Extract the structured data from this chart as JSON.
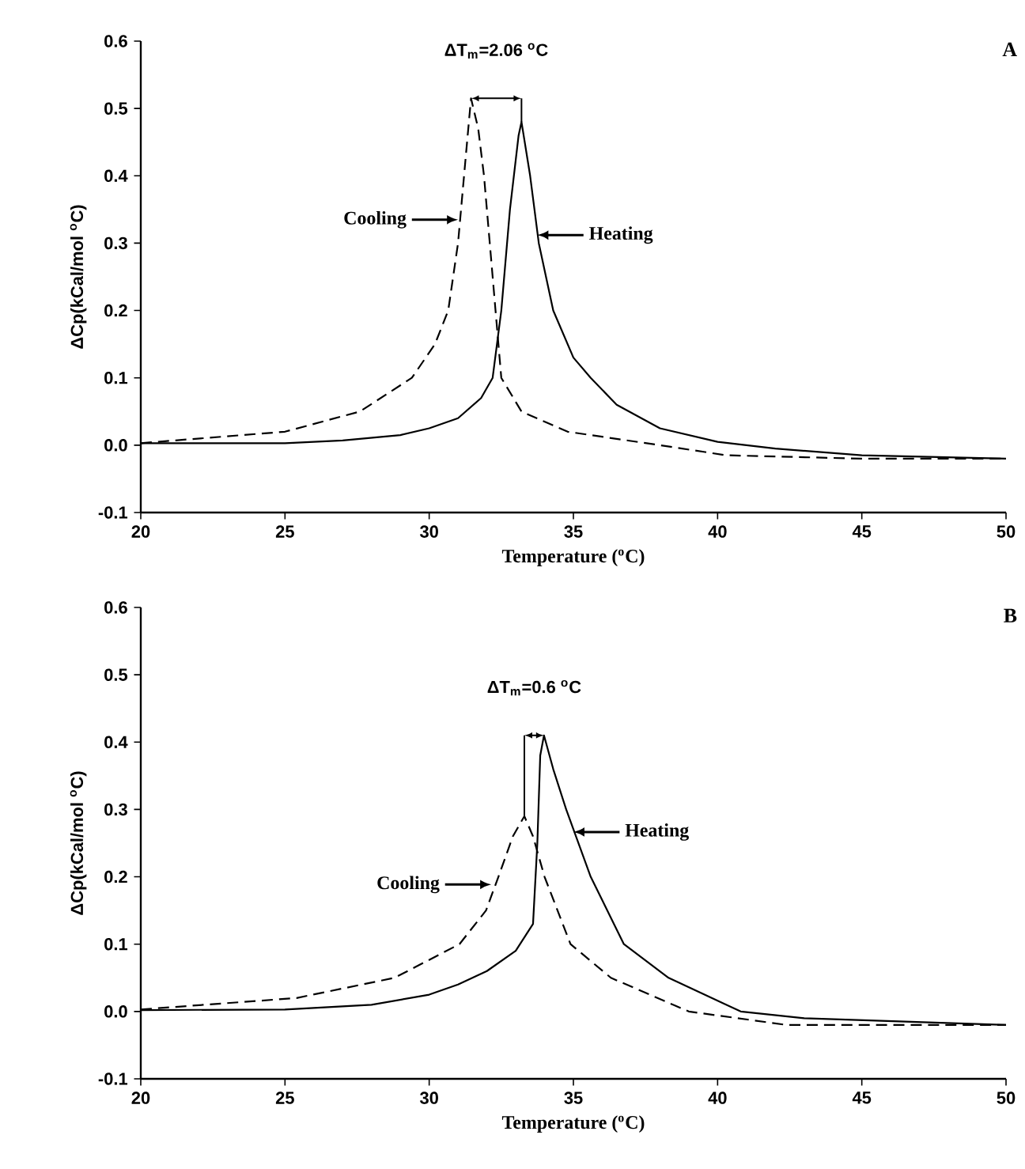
{
  "chart_data": [
    {
      "type": "line",
      "title": "A",
      "xlabel": "Temperature ($^{o}$C)",
      "ylabel": "ΔCp(kCal/mol $^{o}$C)",
      "xlim": [
        20,
        50
      ],
      "ylim": [
        -0.1,
        0.6
      ],
      "xticks": [
        20,
        25,
        30,
        35,
        40,
        45,
        50
      ],
      "yticks": [
        -0.1,
        {
          "value": 0,
          "label": "0.0"
        },
        0.1,
        0.2,
        0.3,
        0.4,
        0.5,
        0.6
      ],
      "annotations": [
        "ΔT$_{m}$=2.06 $^{o}$C"
      ],
      "series": [
        {
          "name": "Heating",
          "color": "#000000",
          "line_style": "solid",
          "x": [
            20,
            25,
            27,
            29,
            30,
            31,
            31.8,
            32.2,
            32.5,
            32.8,
            33.1,
            33.2,
            33.5,
            33.8,
            34.3,
            35,
            35.6,
            36.5,
            38,
            40,
            42,
            45,
            50
          ],
          "values": [
            0.003,
            0.003,
            0.007,
            0.015,
            0.025,
            0.04,
            0.07,
            0.1,
            0.2,
            0.35,
            0.46,
            0.48,
            0.4,
            0.3,
            0.2,
            0.13,
            0.1,
            0.06,
            0.025,
            0.005,
            -0.005,
            -0.015,
            -0.02
          ]
        },
        {
          "name": "Cooling",
          "color": "#000000",
          "line_style": "dashed",
          "x": [
            20,
            25,
            27.6,
            29.4,
            30.2,
            30.66,
            31.0,
            31.25,
            31.45,
            31.7,
            31.9,
            32.1,
            32.3,
            32.5,
            33.2,
            34.8,
            38,
            40.3,
            45,
            50
          ],
          "values": [
            0.003,
            0.02,
            0.05,
            0.1,
            0.15,
            0.2,
            0.3,
            0.42,
            0.515,
            0.47,
            0.4,
            0.3,
            0.2,
            0.1,
            0.05,
            0.02,
            0.0,
            -0.015,
            -0.02,
            -0.02
          ]
        }
      ]
    },
    {
      "type": "line",
      "title": "B",
      "xlabel": "Temperature ($^{o}$C)",
      "ylabel": "ΔCp(kCal/mol $^{o}$C)",
      "xlim": [
        20,
        50
      ],
      "ylim": [
        -0.1,
        0.6
      ],
      "xticks": [
        20,
        25,
        30,
        35,
        40,
        45,
        50
      ],
      "yticks": [
        -0.1,
        {
          "value": 0,
          "label": "0.0"
        },
        0.1,
        0.2,
        0.3,
        0.4,
        0.5,
        0.6
      ],
      "annotations": [
        "ΔT$_{m}$=0.6 $^{o}$C"
      ],
      "series": [
        {
          "name": "Heating",
          "color": "#000000",
          "line_style": "solid",
          "x": [
            20,
            25,
            28,
            30,
            31,
            32,
            33,
            33.6,
            33.75,
            33.85,
            33.98,
            34.3,
            34.75,
            35.6,
            36.75,
            38.3,
            40.8,
            43,
            50
          ],
          "values": [
            0.002,
            0.003,
            0.01,
            0.025,
            0.04,
            0.06,
            0.09,
            0.13,
            0.25,
            0.38,
            0.41,
            0.36,
            0.3,
            0.2,
            0.1,
            0.05,
            0.0,
            -0.01,
            -0.02
          ]
        },
        {
          "name": "Cooling",
          "color": "#000000",
          "line_style": "dashed",
          "x": [
            20,
            25.4,
            28.8,
            31.05,
            31.97,
            32.4,
            32.9,
            33.3,
            33.6,
            34.0,
            34.9,
            36.3,
            39,
            42.4,
            47,
            50
          ],
          "values": [
            0.003,
            0.02,
            0.05,
            0.1,
            0.15,
            0.2,
            0.26,
            0.29,
            0.26,
            0.2,
            0.1,
            0.05,
            0.0,
            -0.02,
            -0.02,
            -0.02
          ]
        }
      ]
    }
  ]
}
